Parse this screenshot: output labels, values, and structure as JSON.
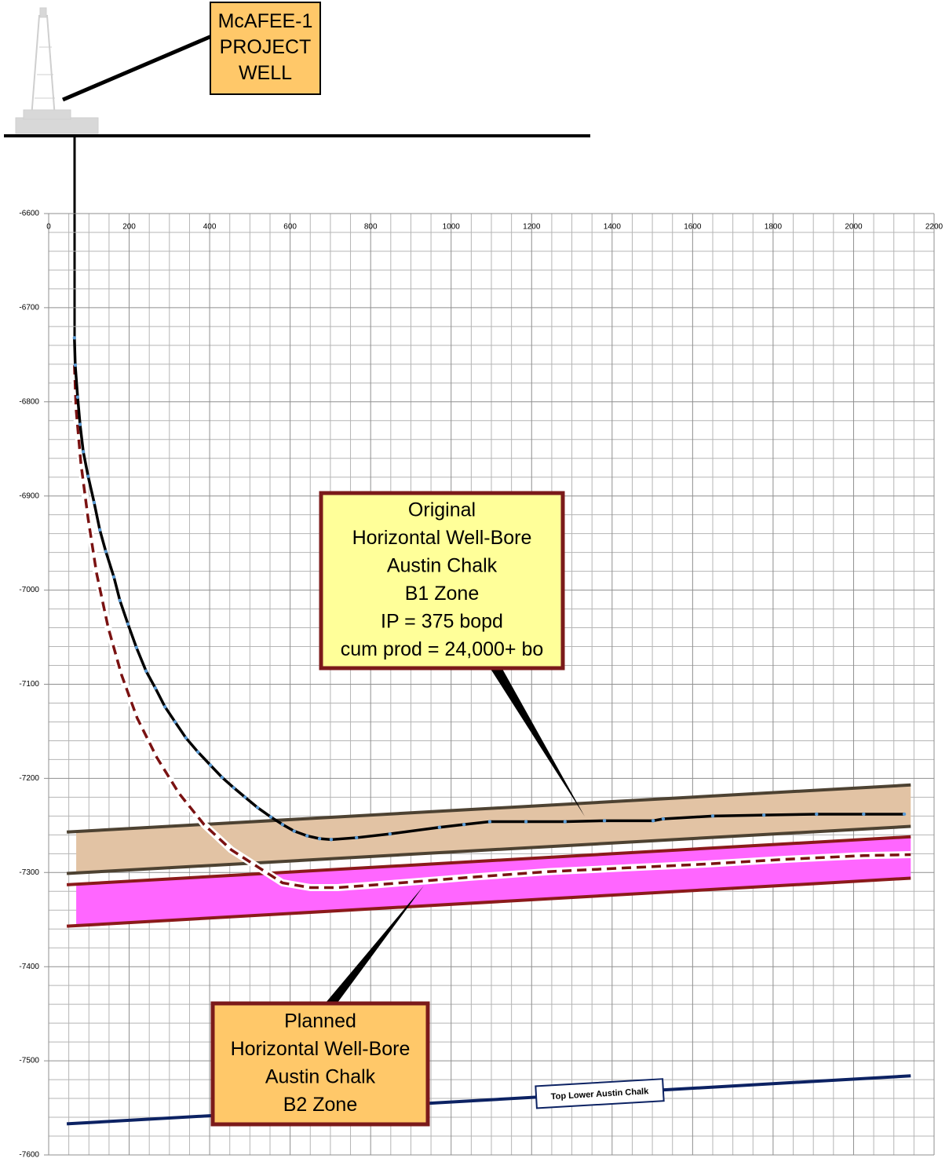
{
  "chart_data": {
    "type": "line",
    "xlim": [
      0,
      2200
    ],
    "ylim": [
      -7600,
      -6600
    ],
    "xticks": [
      0,
      200,
      400,
      600,
      800,
      1000,
      1200,
      1400,
      1600,
      1800,
      2000,
      2200
    ],
    "yticks": [
      -6600,
      -6700,
      -6800,
      -6900,
      -7000,
      -7100,
      -7200,
      -7300,
      -7400,
      -7500,
      -7600
    ],
    "grid": true,
    "zones": [
      {
        "fill": "#e2c3a4",
        "line_color": "#4d4232",
        "x": [
          45,
          2142
        ],
        "top": [
          -7257,
          -7207
        ],
        "bottom": [
          -7301,
          -7251
        ]
      },
      {
        "fill": "#ff66ff",
        "line_color": "#8b1a1a",
        "x": [
          45,
          2142
        ],
        "top": [
          -7313,
          -7262
        ],
        "bottom": [
          -7357,
          -7306
        ]
      }
    ],
    "horizons": [
      {
        "name": "Top Lower Austin Chalk",
        "color": "#0c2263",
        "x": [
          45,
          2142
        ],
        "values": [
          -7567,
          -7516
        ]
      }
    ],
    "series": [
      {
        "color": "#7a1212",
        "dashed": true,
        "markers": false,
        "x": [
          64,
          68,
          80,
          98,
          119,
          148,
          181,
          220,
          269,
          324,
          386,
          454,
          523,
          581,
          650,
          718,
          815,
          932,
          1049,
          1244,
          1439,
          1634,
          1830,
          2025,
          2142
        ],
        "values": [
          -6761,
          -6807,
          -6865,
          -6924,
          -6982,
          -7040,
          -7090,
          -7136,
          -7178,
          -7216,
          -7249,
          -7276,
          -7295,
          -7311,
          -7316,
          -7316,
          -7313,
          -7309,
          -7305,
          -7299,
          -7295,
          -7291,
          -7286,
          -7282,
          -7281
        ]
      },
      {
        "color": "#000000",
        "dashed": false,
        "markers": true,
        "x": [
          64,
          66,
          72,
          78,
          86,
          98,
          113,
          127,
          142,
          162,
          177,
          197,
          218,
          242,
          265,
          289,
          314,
          341,
          371,
          402,
          431,
          460,
          488,
          519,
          552,
          581,
          610,
          642,
          673,
          702,
          765,
          848,
          971,
          1032,
          1096,
          1186,
          1283,
          1381,
          1502,
          1527,
          1650,
          1777,
          1908,
          2025,
          2126
        ],
        "values": [
          -6732,
          -6761,
          -6795,
          -6824,
          -6853,
          -6879,
          -6907,
          -6936,
          -6959,
          -6986,
          -7011,
          -7036,
          -7061,
          -7086,
          -7104,
          -7124,
          -7140,
          -7157,
          -7172,
          -7186,
          -7199,
          -7210,
          -7220,
          -7231,
          -7241,
          -7249,
          -7256,
          -7261,
          -7264,
          -7265,
          -7263,
          -7259,
          -7252,
          -7249,
          -7246,
          -7246,
          -7246,
          -7245,
          -7245,
          -7243,
          -7240,
          -7239,
          -7238,
          -7238,
          -7238
        ]
      }
    ],
    "annotations": [
      {
        "lines": [
          "McAFEE-1",
          "PROJECT",
          "WELL"
        ]
      },
      {
        "lines": [
          "Original",
          "Horizontal Well-Bore",
          "Austin Chalk",
          "B1 Zone",
          "IP = 375 bopd",
          "cum prod = 24,000+ bo"
        ]
      },
      {
        "lines": [
          "Planned",
          "Horizontal Well-Bore",
          "Austin Chalk",
          "B2 Zone"
        ]
      }
    ]
  }
}
